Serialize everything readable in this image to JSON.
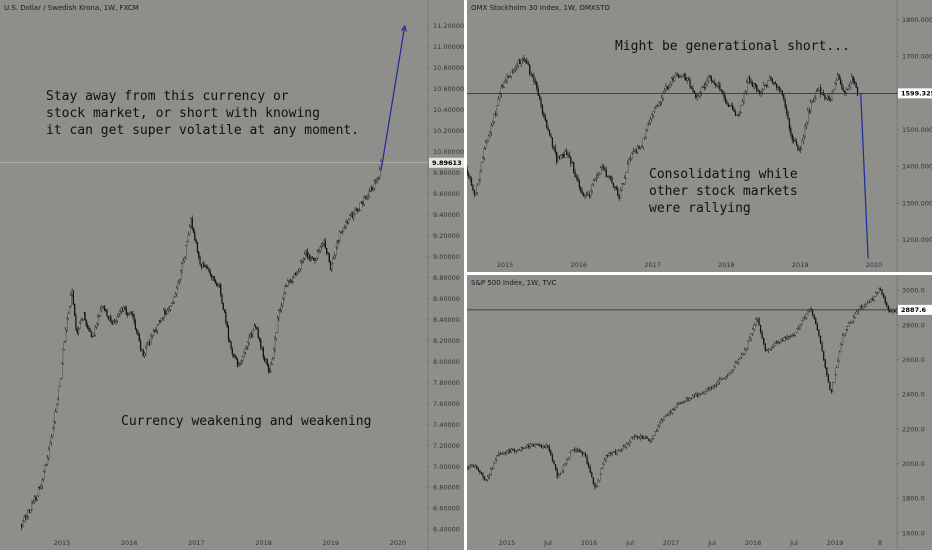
{
  "chart_data": [
    {
      "type": "candlestick",
      "title": "U.S. Dollar / Swedish Krona, 1W, FXCM",
      "x_tick_labels": [
        "2015",
        "2016",
        "2017",
        "2018",
        "2019",
        "2020"
      ],
      "y_tick_labels": [
        "6.40000",
        "6.60000",
        "6.80000",
        "7.00000",
        "7.20000",
        "7.40000",
        "7.60000",
        "7.80000",
        "8.00000",
        "8.20000",
        "8.40000",
        "8.60000",
        "8.80000",
        "9.00000",
        "9.20000",
        "9.40000",
        "9.60000",
        "9.80000",
        "10.00000",
        "10.20000",
        "10.40000",
        "10.60000",
        "10.80000",
        "11.00000",
        "11.20000"
      ],
      "ylim": [
        6.3,
        11.4
      ],
      "last_price": 9.89613,
      "last_price_label": "9.89613",
      "price_path": [
        [
          2014.4,
          6.45
        ],
        [
          2014.55,
          6.62
        ],
        [
          2014.7,
          6.85
        ],
        [
          2014.85,
          7.3
        ],
        [
          2014.95,
          7.7
        ],
        [
          2015.05,
          8.3
        ],
        [
          2015.15,
          8.7
        ],
        [
          2015.22,
          8.25
        ],
        [
          2015.32,
          8.45
        ],
        [
          2015.45,
          8.2
        ],
        [
          2015.6,
          8.55
        ],
        [
          2015.75,
          8.35
        ],
        [
          2015.9,
          8.5
        ],
        [
          2016.05,
          8.45
        ],
        [
          2016.2,
          8.05
        ],
        [
          2016.35,
          8.25
        ],
        [
          2016.5,
          8.45
        ],
        [
          2016.65,
          8.55
        ],
        [
          2016.8,
          8.95
        ],
        [
          2016.92,
          9.35
        ],
        [
          2017.05,
          8.95
        ],
        [
          2017.2,
          8.85
        ],
        [
          2017.35,
          8.7
        ],
        [
          2017.5,
          8.15
        ],
        [
          2017.62,
          7.95
        ],
        [
          2017.75,
          8.15
        ],
        [
          2017.88,
          8.35
        ],
        [
          2018.0,
          8.05
        ],
        [
          2018.1,
          7.9
        ],
        [
          2018.22,
          8.45
        ],
        [
          2018.35,
          8.75
        ],
        [
          2018.5,
          8.85
        ],
        [
          2018.62,
          9.05
        ],
        [
          2018.75,
          8.95
        ],
        [
          2018.9,
          9.15
        ],
        [
          2019.0,
          8.9
        ],
        [
          2019.12,
          9.2
        ],
        [
          2019.25,
          9.35
        ],
        [
          2019.4,
          9.45
        ],
        [
          2019.5,
          9.55
        ],
        [
          2019.6,
          9.65
        ],
        [
          2019.7,
          9.75
        ],
        [
          2019.75,
          9.89
        ]
      ],
      "projection": [
        [
          2019.75,
          9.83
        ],
        [
          2020.1,
          11.2
        ]
      ],
      "annotations": [
        "Stay away from this currency or\nstock market, or short with knowing\nit can get super volatile at any moment.",
        "Currency weakening and weakening"
      ]
    },
    {
      "type": "candlestick",
      "title": "OMX Stockholm 30 Index, 1W, OMXSTO",
      "x_tick_labels": [
        "2015",
        "2016",
        "2017",
        "2018",
        "2019",
        "2020"
      ],
      "y_tick_labels": [
        "1200.0000",
        "1300.0000",
        "1400.0000",
        "1500.0000",
        "1600.0000",
        "1700.0000",
        "1800.0000"
      ],
      "ylim": [
        1140,
        1840
      ],
      "last_price": 1599.3258,
      "last_price_label": "1599.3258",
      "price_path": [
        [
          2014.45,
          1400
        ],
        [
          2014.6,
          1320
        ],
        [
          2014.72,
          1450
        ],
        [
          2014.85,
          1530
        ],
        [
          2014.95,
          1620
        ],
        [
          2015.1,
          1660
        ],
        [
          2015.25,
          1700
        ],
        [
          2015.4,
          1630
        ],
        [
          2015.55,
          1520
        ],
        [
          2015.7,
          1420
        ],
        [
          2015.85,
          1440
        ],
        [
          2016.05,
          1320
        ],
        [
          2016.15,
          1330
        ],
        [
          2016.3,
          1400
        ],
        [
          2016.45,
          1360
        ],
        [
          2016.55,
          1320
        ],
        [
          2016.7,
          1430
        ],
        [
          2016.85,
          1460
        ],
        [
          2017.0,
          1550
        ],
        [
          2017.15,
          1600
        ],
        [
          2017.3,
          1650
        ],
        [
          2017.45,
          1640
        ],
        [
          2017.6,
          1590
        ],
        [
          2017.75,
          1640
        ],
        [
          2017.9,
          1620
        ],
        [
          2018.0,
          1580
        ],
        [
          2018.15,
          1530
        ],
        [
          2018.3,
          1640
        ],
        [
          2018.45,
          1600
        ],
        [
          2018.6,
          1640
        ],
        [
          2018.75,
          1600
        ],
        [
          2018.9,
          1470
        ],
        [
          2019.0,
          1440
        ],
        [
          2019.12,
          1560
        ],
        [
          2019.25,
          1610
        ],
        [
          2019.4,
          1580
        ],
        [
          2019.5,
          1650
        ],
        [
          2019.6,
          1600
        ],
        [
          2019.7,
          1640
        ],
        [
          2019.78,
          1599
        ]
      ],
      "projection": [
        [
          2019.82,
          1600
        ],
        [
          2019.92,
          1150
        ]
      ],
      "annotations": [
        "Might be generational short...",
        "Consolidating while\nother stock markets\nwere rallying"
      ]
    },
    {
      "type": "candlestick",
      "title": "S&P 500 Index, 1W, TVC",
      "x_tick_labels": [
        "2015",
        "Jul",
        "2016",
        "Jul",
        "2017",
        "Jul",
        "2018",
        "Jul",
        "2019",
        "8"
      ],
      "y_tick_labels": [
        "1600.0",
        "1800.0",
        "2000.0",
        "2200.0",
        "2400.0",
        "2600.0",
        "2800.0",
        "3000.0"
      ],
      "ylim": [
        1560,
        3060
      ],
      "last_price": 2887.6,
      "last_price_label": "2887.6",
      "price_path": [
        [
          2014.4,
          1950
        ],
        [
          2014.6,
          1990
        ],
        [
          2014.75,
          1900
        ],
        [
          2014.9,
          2060
        ],
        [
          2015.1,
          2080
        ],
        [
          2015.3,
          2110
        ],
        [
          2015.5,
          2100
        ],
        [
          2015.62,
          1920
        ],
        [
          2015.8,
          2090
        ],
        [
          2015.95,
          2050
        ],
        [
          2016.08,
          1850
        ],
        [
          2016.2,
          2050
        ],
        [
          2016.4,
          2080
        ],
        [
          2016.55,
          2160
        ],
        [
          2016.75,
          2140
        ],
        [
          2016.9,
          2260
        ],
        [
          2017.1,
          2350
        ],
        [
          2017.3,
          2390
        ],
        [
          2017.5,
          2440
        ],
        [
          2017.7,
          2520
        ],
        [
          2017.9,
          2650
        ],
        [
          2018.05,
          2850
        ],
        [
          2018.15,
          2650
        ],
        [
          2018.3,
          2700
        ],
        [
          2018.5,
          2750
        ],
        [
          2018.7,
          2900
        ],
        [
          2018.8,
          2750
        ],
        [
          2018.95,
          2400
        ],
        [
          2019.1,
          2750
        ],
        [
          2019.3,
          2900
        ],
        [
          2019.45,
          2950
        ],
        [
          2019.55,
          3010
        ],
        [
          2019.65,
          2880
        ],
        [
          2019.75,
          2887
        ]
      ]
    }
  ]
}
